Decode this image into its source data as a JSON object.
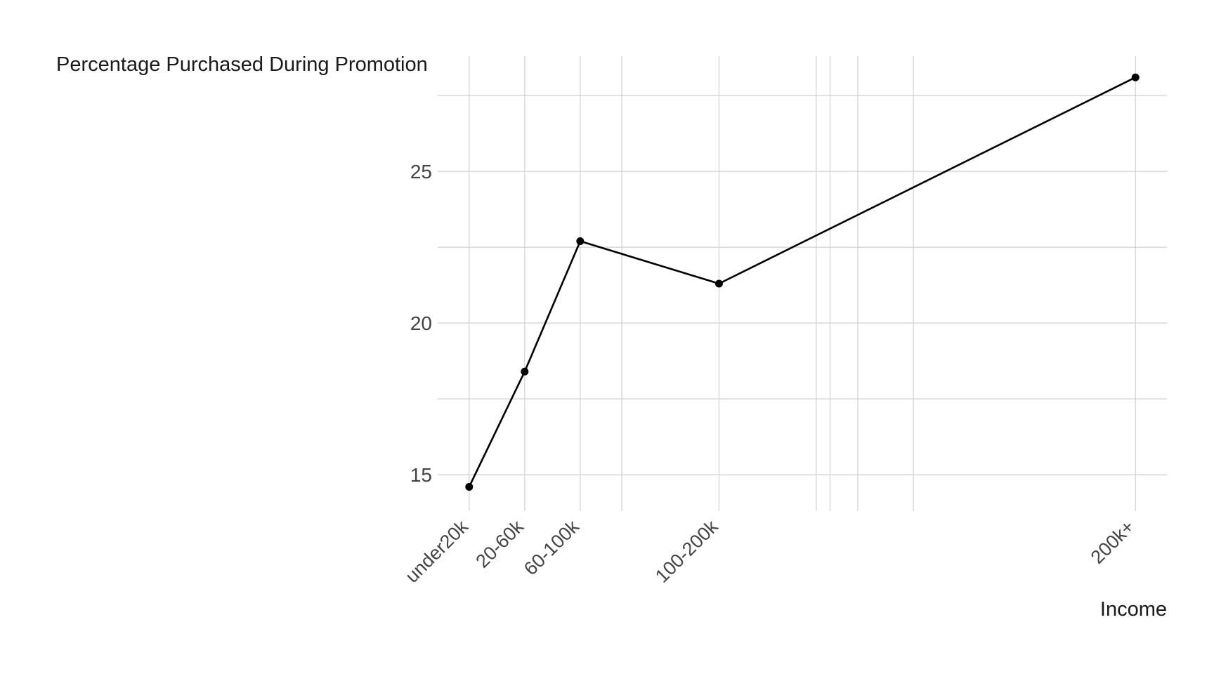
{
  "chart_data": {
    "type": "line",
    "ylabel": "Percentage Purchased During Promotion",
    "xlabel": "Income",
    "categories": [
      "under20k",
      "20-60k",
      "60-100k",
      "100-200k",
      "200k+"
    ],
    "x_positions": [
      10,
      40,
      70,
      145,
      370
    ],
    "y_values": [
      14.6,
      18.4,
      22.7,
      21.3,
      28.1
    ],
    "x_range": [
      -7,
      387
    ],
    "y_range": [
      13.8,
      28.8
    ],
    "y_ticks": [
      15,
      20,
      25
    ],
    "y_minor_ticks": [
      17.5,
      22.5,
      27.5
    ],
    "x_minor_gridlines": [
      92.5,
      197.5,
      205,
      220,
      250
    ],
    "grid": true,
    "line_color": "#000000",
    "point_color": "#000000"
  }
}
